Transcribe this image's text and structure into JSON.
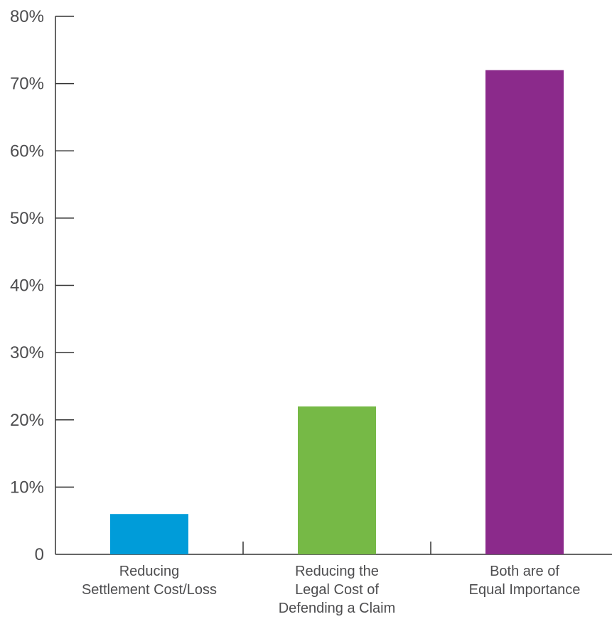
{
  "chart_data": {
    "type": "bar",
    "categories": [
      [
        "Reducing",
        "Settlement Cost/Loss"
      ],
      [
        "Reducing the",
        "Legal Cost of",
        "Defending a Claim"
      ],
      [
        "Both are of",
        "Equal Importance"
      ]
    ],
    "values": [
      6,
      22,
      72
    ],
    "colors": [
      "#009cd9",
      "#76b946",
      "#8b2a8b"
    ],
    "yticks": [
      0,
      10,
      20,
      30,
      40,
      50,
      60,
      70,
      80
    ],
    "ytick_labels": [
      "0",
      "10%",
      "20%",
      "30%",
      "40%",
      "50%",
      "60%",
      "70%",
      "80%"
    ],
    "ylim": [
      0,
      80
    ],
    "grid": false,
    "legend": "none",
    "title": "",
    "xlabel": "",
    "ylabel": ""
  }
}
